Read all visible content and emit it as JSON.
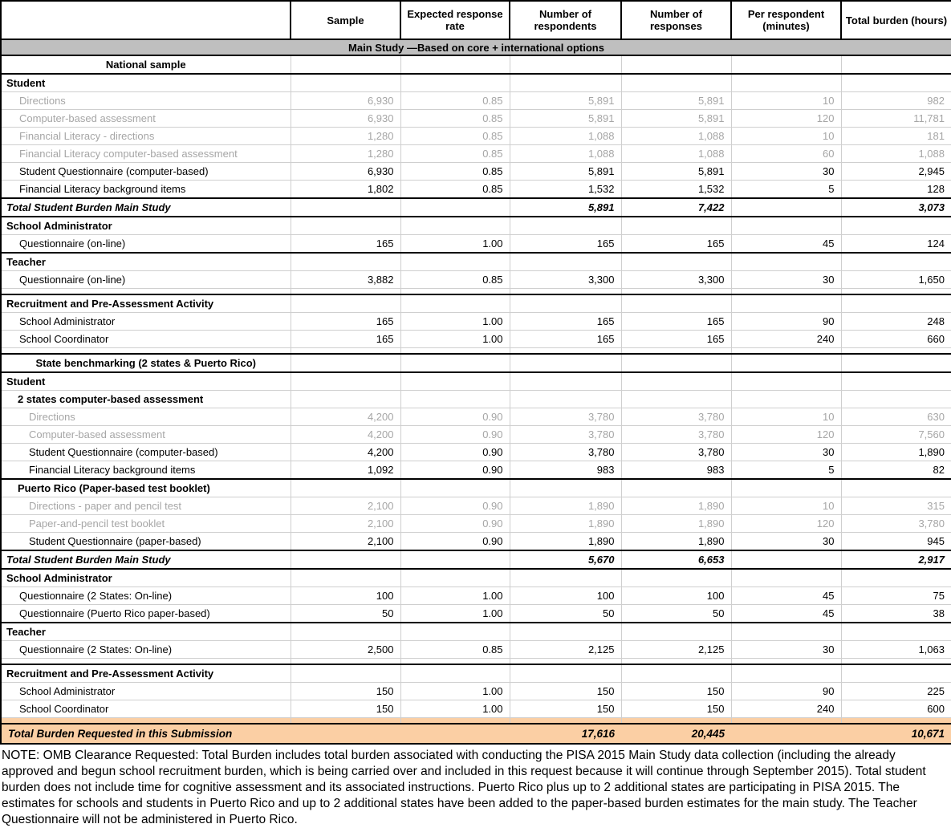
{
  "colors": {
    "band_bg": "#bfbfbf",
    "highlight_bg": "#fbcfa4",
    "muted_text": "#a6a6a6"
  },
  "table": {
    "columns": [
      "",
      "Sample",
      "Expected response rate",
      "Number of respondents",
      "Number of responses",
      "Per respondent (minutes)",
      "Total burden (hours)"
    ],
    "band": "Main Study —Based on core + international options",
    "rows": [
      {
        "type": "subheader",
        "label": "National sample",
        "values": [
          "",
          "",
          "",
          "",
          "",
          ""
        ]
      },
      {
        "type": "section",
        "label": "Student",
        "values": [
          "",
          "",
          "",
          "",
          "",
          ""
        ]
      },
      {
        "type": "item-gray",
        "label": "Directions",
        "values": [
          "6,930",
          "0.85",
          "5,891",
          "5,891",
          "10",
          "982"
        ]
      },
      {
        "type": "item-gray",
        "label": "Computer-based assessment",
        "values": [
          "6,930",
          "0.85",
          "5,891",
          "5,891",
          "120",
          "11,781"
        ]
      },
      {
        "type": "item-gray",
        "label": "Financial Literacy - directions",
        "values": [
          "1,280",
          "0.85",
          "1,088",
          "1,088",
          "10",
          "181"
        ]
      },
      {
        "type": "item-gray",
        "label": "Financial Literacy computer-based assessment",
        "values": [
          "1,280",
          "0.85",
          "1,088",
          "1,088",
          "60",
          "1,088"
        ]
      },
      {
        "type": "item",
        "label": "Student Questionnaire (computer-based)",
        "values": [
          "6,930",
          "0.85",
          "5,891",
          "5,891",
          "30",
          "2,945"
        ]
      },
      {
        "type": "item",
        "label": "Financial Literacy background items",
        "values": [
          "1,802",
          "0.85",
          "1,532",
          "1,532",
          "5",
          "128"
        ]
      },
      {
        "type": "total",
        "label": "Total Student Burden Main Study",
        "values": [
          "",
          "",
          "5,891",
          "7,422",
          "",
          "3,073"
        ]
      },
      {
        "type": "section",
        "label": "School Administrator",
        "values": [
          "",
          "",
          "",
          "",
          "",
          ""
        ]
      },
      {
        "type": "item",
        "label": "Questionnaire (on-line)",
        "values": [
          "165",
          "1.00",
          "165",
          "165",
          "45",
          "124"
        ]
      },
      {
        "type": "section",
        "label": "Teacher",
        "divider_above": true,
        "values": [
          "",
          "",
          "",
          "",
          "",
          ""
        ]
      },
      {
        "type": "item",
        "label": "Questionnaire (on-line)",
        "values": [
          "3,882",
          "0.85",
          "3,300",
          "3,300",
          "30",
          "1,650"
        ]
      },
      {
        "type": "spacer"
      },
      {
        "type": "section",
        "label": "Recruitment and Pre-Assessment Activity",
        "divider_above": true,
        "values": [
          "",
          "",
          "",
          "",
          "",
          ""
        ]
      },
      {
        "type": "item",
        "label": "School Administrator",
        "values": [
          "165",
          "1.00",
          "165",
          "165",
          "90",
          "248"
        ]
      },
      {
        "type": "item",
        "label": "School Coordinator",
        "values": [
          "165",
          "1.00",
          "165",
          "165",
          "240",
          "660"
        ]
      },
      {
        "type": "spacer"
      },
      {
        "type": "subheader-boxed",
        "label": "State benchmarking (2 states & Puerto Rico)",
        "values": [
          "",
          "",
          "",
          "",
          "",
          ""
        ]
      },
      {
        "type": "section",
        "label": "Student",
        "values": [
          "",
          "",
          "",
          "",
          "",
          ""
        ]
      },
      {
        "type": "subsection",
        "label": "2 states computer-based assessment",
        "values": [
          "",
          "",
          "",
          "",
          "",
          ""
        ]
      },
      {
        "type": "item-sub-gray",
        "label": "Directions",
        "values": [
          "4,200",
          "0.90",
          "3,780",
          "3,780",
          "10",
          "630"
        ]
      },
      {
        "type": "item-sub-gray",
        "label": "Computer-based assessment",
        "values": [
          "4,200",
          "0.90",
          "3,780",
          "3,780",
          "120",
          "7,560"
        ]
      },
      {
        "type": "item-sub",
        "label": "Student Questionnaire (computer-based)",
        "values": [
          "4,200",
          "0.90",
          "3,780",
          "3,780",
          "30",
          "1,890"
        ]
      },
      {
        "type": "item-sub",
        "label": "Financial Literacy background items",
        "values": [
          "1,092",
          "0.90",
          "983",
          "983",
          "5",
          "82"
        ]
      },
      {
        "type": "subsection",
        "label": "Puerto Rico (Paper-based test booklet)",
        "divider_above": true,
        "values": [
          "",
          "",
          "",
          "",
          "",
          ""
        ]
      },
      {
        "type": "item-sub-gray",
        "label": "Directions - paper and pencil test",
        "values": [
          "2,100",
          "0.90",
          "1,890",
          "1,890",
          "10",
          "315"
        ]
      },
      {
        "type": "item-sub-gray",
        "label": "Paper-and-pencil test booklet",
        "values": [
          "2,100",
          "0.90",
          "1,890",
          "1,890",
          "120",
          "3,780"
        ]
      },
      {
        "type": "item-sub",
        "label": "Student Questionnaire (paper-based)",
        "values": [
          "2,100",
          "0.90",
          "1,890",
          "1,890",
          "30",
          "945"
        ]
      },
      {
        "type": "total",
        "label": "Total Student Burden Main Study",
        "values": [
          "",
          "",
          "5,670",
          "6,653",
          "",
          "2,917"
        ]
      },
      {
        "type": "section",
        "label": "School Administrator",
        "values": [
          "",
          "",
          "",
          "",
          "",
          ""
        ]
      },
      {
        "type": "item",
        "label": "Questionnaire (2 States: On-line)",
        "values": [
          "100",
          "1.00",
          "100",
          "100",
          "45",
          "75"
        ]
      },
      {
        "type": "item",
        "label": "Questionnaire (Puerto Rico paper-based)",
        "values": [
          "50",
          "1.00",
          "50",
          "50",
          "45",
          "38"
        ]
      },
      {
        "type": "section",
        "label": "Teacher",
        "divider_above": true,
        "values": [
          "",
          "",
          "",
          "",
          "",
          ""
        ]
      },
      {
        "type": "item",
        "label": "Questionnaire (2 States: On-line)",
        "values": [
          "2,500",
          "0.85",
          "2,125",
          "2,125",
          "30",
          "1,063"
        ]
      },
      {
        "type": "spacer"
      },
      {
        "type": "section",
        "label": "Recruitment and Pre-Assessment Activity",
        "divider_above": true,
        "values": [
          "",
          "",
          "",
          "",
          "",
          ""
        ]
      },
      {
        "type": "item",
        "label": "School Administrator",
        "values": [
          "150",
          "1.00",
          "150",
          "150",
          "90",
          "225"
        ]
      },
      {
        "type": "item",
        "label": "School Coordinator",
        "values": [
          "150",
          "1.00",
          "150",
          "150",
          "240",
          "600"
        ]
      },
      {
        "type": "spacer-orange"
      },
      {
        "type": "grand-total",
        "label": "Total Burden Requested in this Submission",
        "values": [
          "",
          "",
          "17,616",
          "20,445",
          "",
          "10,671"
        ]
      }
    ]
  },
  "note": "NOTE: OMB Clearance Requested: Total Burden includes total burden associated with conducting the PISA 2015 Main Study data collection (including the already approved and begun school recruitment burden, which is being carried over and included in this request because it will continue through September 2015). Total student burden does not include time for cognitive assessment and its associated instructions. Puerto Rico plus up to 2 additional states are participating in PISA 2015. The estimates for schools and students in Puerto Rico and up to 2 additional states have been added to the paper-based burden estimates for the main study. The Teacher Questionnaire will not be administered in Puerto Rico."
}
